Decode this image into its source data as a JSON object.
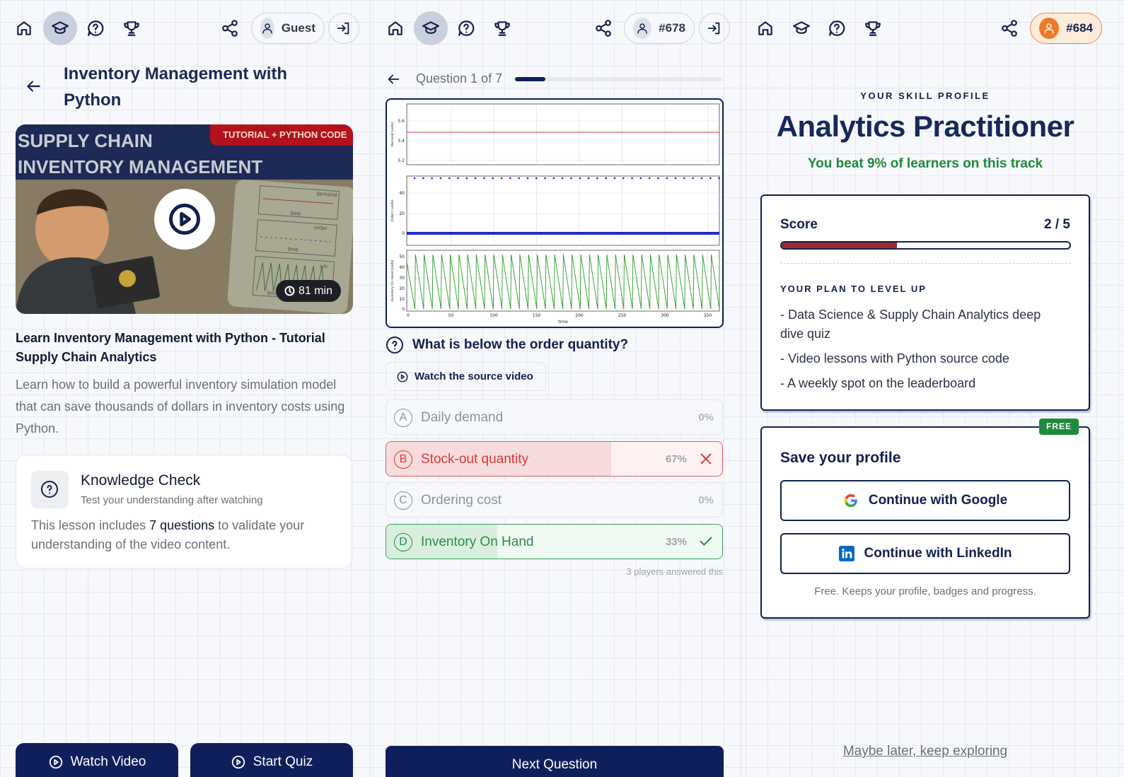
{
  "lesson": {
    "nav_user": "Guest",
    "title": "Inventory Management with Python",
    "thumbnail": {
      "banner_lines": [
        "SUPPLY CHAIN",
        "INVENTORY MANAGEMENT"
      ],
      "badge": "TUTORIAL + PYTHON CODE",
      "sketch_labels": [
        "demand",
        "time",
        "order",
        "time",
        "ioh",
        "time"
      ],
      "duration": "81 min"
    },
    "video_title": "Learn Inventory Management with Python - Tutorial Supply Chain Analytics",
    "description": "Learn how to build a powerful inventory simulation model that can save thousands of dollars in inventory costs using Python.",
    "knowledge_check": {
      "title": "Knowledge Check",
      "subtitle": "Test your understanding after watching",
      "body_before": "This lesson includes ",
      "body_highlight": "7 questions",
      "body_after": " to validate your understanding of the video content."
    },
    "buttons": [
      "Watch Video",
      "Start Quiz"
    ]
  },
  "quiz": {
    "nav_user": "#678",
    "progress": "Question 1 of 7",
    "figure": {
      "y_labels": [
        "Demand (units)",
        "Orders (units)",
        "Inventory On Hand (Units)"
      ],
      "y_ticks": [
        [
          "5.6",
          "5.4",
          "5.2"
        ],
        [
          "40",
          "20",
          "0"
        ],
        [
          "50",
          "40",
          "30",
          "20",
          "10",
          "0"
        ]
      ],
      "x_ticks": [
        "0",
        "50",
        "100",
        "150",
        "200",
        "250",
        "300",
        "350"
      ],
      "x_label": "time"
    },
    "question": "What is below the order quantity?",
    "source_button": "Watch the source video",
    "options": [
      {
        "letter": "A",
        "text": "Daily demand",
        "percent": "0%",
        "state": "neutral"
      },
      {
        "letter": "B",
        "text": "Stock-out quantity",
        "percent": "67%",
        "state": "wrong"
      },
      {
        "letter": "C",
        "text": "Ordering cost",
        "percent": "0%",
        "state": "neutral"
      },
      {
        "letter": "D",
        "text": "Inventory On Hand",
        "percent": "33%",
        "state": "correct"
      }
    ],
    "answered_note": "3 players answered this",
    "next_button": "Next Question"
  },
  "profile": {
    "nav_user": "#684",
    "eyebrow": "YOUR SKILL PROFILE",
    "title": "Analytics Practitioner",
    "beat": "You beat 9% of learners on this track",
    "score_label": "Score",
    "score": "2 / 5",
    "plan_title": "YOUR PLAN TO LEVEL UP",
    "plan_items": [
      "- Data Science & Supply Chain Analytics deep dive quiz",
      "- Video lessons with Python source code",
      "- A weekly spot on the leaderboard"
    ],
    "badge": "FREE",
    "save_title": "Save your profile",
    "google_button": "Continue with Google",
    "linkedin_button": "Continue with LinkedIn",
    "save_note": "Free. Keeps your profile, badges and progress.",
    "later_link": "Maybe later, keep exploring"
  }
}
